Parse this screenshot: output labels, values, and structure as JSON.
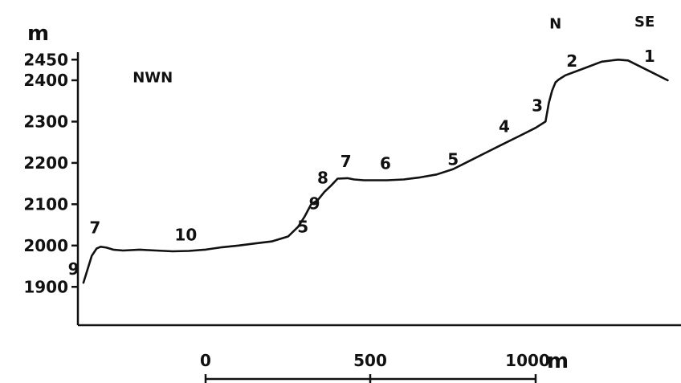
{
  "chart_data": {
    "type": "line",
    "ylabel": "m",
    "yticks": [
      1900,
      2000,
      2100,
      2200,
      2300,
      2400,
      2450
    ],
    "ylim": [
      1840,
      2460
    ],
    "xlim": [
      -400,
      1300
    ],
    "xticks": [
      0,
      500,
      1000
    ],
    "xscale_unit": "m",
    "directions": [
      "NWN",
      "N",
      "SE"
    ],
    "series": [
      {
        "x": [
          -370,
          -345,
          -330,
          -318,
          -300,
          -280,
          -250,
          -200,
          -150,
          -100,
          -50,
          0,
          50,
          100,
          150,
          200,
          250,
          280,
          300,
          320,
          340,
          360,
          380,
          400,
          430,
          450,
          480,
          520,
          550,
          600,
          650,
          700,
          750,
          800,
          850,
          900,
          950,
          1000,
          1030,
          1040,
          1050,
          1060,
          1070,
          1090,
          1150,
          1200,
          1250,
          1280,
          1300,
          1350,
          1400
        ],
        "y": [
          1910,
          1975,
          1993,
          1997,
          1995,
          1990,
          1988,
          1990,
          1988,
          1986,
          1987,
          1990,
          1996,
          2000,
          2005,
          2010,
          2022,
          2045,
          2070,
          2100,
          2110,
          2130,
          2145,
          2162,
          2163,
          2160,
          2158,
          2158,
          2158,
          2160,
          2165,
          2172,
          2185,
          2205,
          2225,
          2245,
          2265,
          2285,
          2300,
          2345,
          2375,
          2395,
          2402,
          2412,
          2430,
          2445,
          2450,
          2448,
          2440,
          2420,
          2400
        ]
      }
    ],
    "point_labels": [
      {
        "text": "9",
        "x": -400,
        "y": 1930
      },
      {
        "text": "7",
        "x": -335,
        "y": 2030
      },
      {
        "text": "10",
        "x": -60,
        "y": 2012
      },
      {
        "text": "5",
        "x": 295,
        "y": 2032
      },
      {
        "text": "9",
        "x": 330,
        "y": 2088
      },
      {
        "text": "8",
        "x": 355,
        "y": 2150
      },
      {
        "text": "7",
        "x": 425,
        "y": 2190
      },
      {
        "text": "6",
        "x": 545,
        "y": 2185
      },
      {
        "text": "5",
        "x": 750,
        "y": 2195
      },
      {
        "text": "4",
        "x": 905,
        "y": 2275
      },
      {
        "text": "3",
        "x": 1005,
        "y": 2325
      },
      {
        "text": "2",
        "x": 1110,
        "y": 2433
      },
      {
        "text": "1",
        "x": 1345,
        "y": 2445
      }
    ],
    "direction_labels": [
      {
        "text": "NWN",
        "x": -160,
        "y": 2395
      },
      {
        "text": "N",
        "x": 1060,
        "y": 2525
      },
      {
        "text": "SE",
        "x": 1330,
        "y": 2530
      }
    ]
  }
}
